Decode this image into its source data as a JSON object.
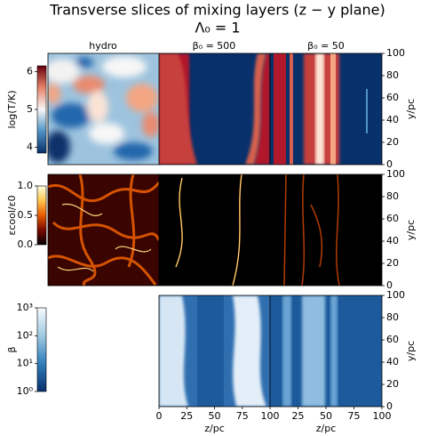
{
  "title": "Transverse slices of mixing layers (z − y plane)",
  "subtitle": "Λ₀ = 1",
  "columns": [
    "hydro",
    "β₀ = 500",
    "β₀ = 50"
  ],
  "chart_data": [
    {
      "type": "colorbar",
      "label": "log(T/K)",
      "colors": [
        "#08306b",
        "#4f93c6",
        "#f7f7f7",
        "#e7826a",
        "#67000d"
      ],
      "ylim": [
        3.85,
        6.15
      ],
      "yticks": [
        4,
        5,
        6
      ]
    },
    {
      "type": "colorbar",
      "label": "εcool/ε0",
      "colors": [
        "#000000",
        "#7a0a00",
        "#e65c00",
        "#ffc54d",
        "#ffffe0"
      ],
      "ylim": [
        0,
        1
      ],
      "yticks": [
        {
          "value": 0,
          "label": "0.0"
        },
        {
          "value": 0.5,
          "label": "0.5"
        },
        {
          "value": 1,
          "label": "1.0"
        }
      ]
    },
    {
      "type": "colorbar",
      "label": "β",
      "log": true,
      "colors": [
        "#08306b",
        "#2f7ebc",
        "#9ecae1",
        "#f7fbff"
      ],
      "ylim": [
        1,
        1000
      ],
      "yticks": [
        {
          "value": 1,
          "label": "10⁰"
        },
        {
          "value": 10,
          "label": "10¹"
        },
        {
          "value": 100,
          "label": "10²"
        },
        {
          "value": 1000,
          "label": "10³"
        }
      ]
    },
    {
      "type": "axis",
      "ylabel": "y/pc",
      "ylim": [
        0,
        100
      ],
      "yticks": [
        0,
        20,
        40,
        60,
        80,
        100
      ]
    },
    {
      "type": "axis",
      "ylabel": "y/pc",
      "ylim": [
        0,
        100
      ],
      "yticks": [
        0,
        20,
        40,
        60,
        80,
        100
      ]
    },
    {
      "type": "axis",
      "ylabel": "y/pc",
      "ylim": [
        0,
        100
      ],
      "yticks": [
        0,
        20,
        40,
        60,
        80,
        100
      ]
    },
    {
      "type": "axis",
      "xlabel": "z/pc",
      "xlim": [
        0,
        100
      ],
      "xticks": [
        0,
        25,
        50,
        75,
        100
      ]
    },
    {
      "type": "axis",
      "xlabel": "z/pc",
      "xlim": [
        0,
        100
      ],
      "xticks": [
        25,
        50,
        75,
        100
      ]
    }
  ]
}
